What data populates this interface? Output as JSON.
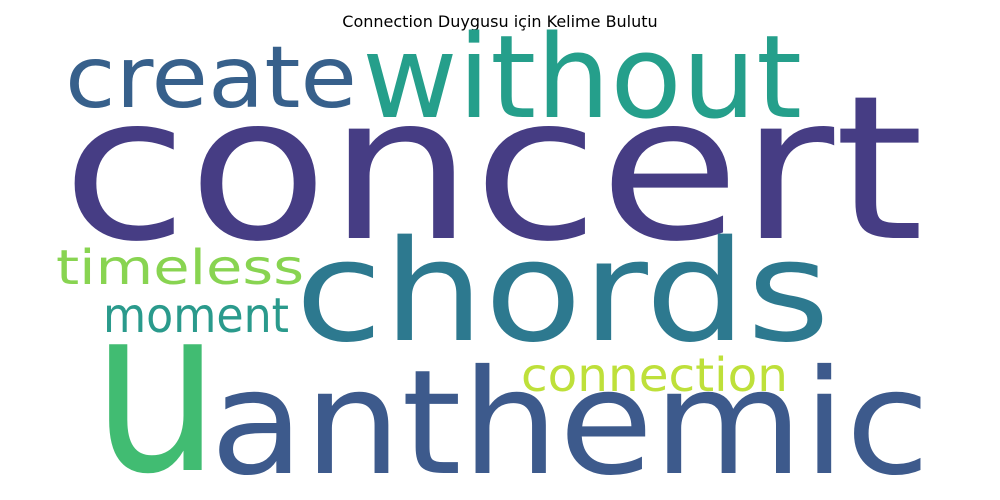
{
  "title": "Connection Duygusu için Kelime Bulutu",
  "words": [
    {
      "text": "concert",
      "color": "#463d84"
    },
    {
      "text": "without",
      "color": "#259f8b"
    },
    {
      "text": "create",
      "color": "#37608b"
    },
    {
      "text": "chords",
      "color": "#2d798f"
    },
    {
      "text": "u",
      "color": "#41bc72"
    },
    {
      "text": "anthemic",
      "color": "#3d5a8c"
    },
    {
      "text": "timeless",
      "color": "#88d451"
    },
    {
      "text": "moment",
      "color": "#2a9a8c"
    },
    {
      "text": "connection",
      "color": "#bee03a"
    }
  ]
}
